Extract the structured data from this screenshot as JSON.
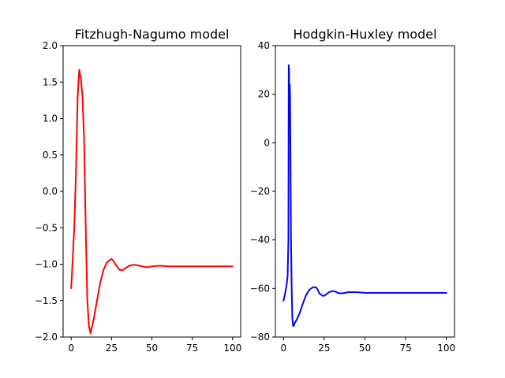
{
  "chart_data": [
    {
      "type": "line",
      "title": "Fitzhugh-Nagumo model",
      "xlabel": "",
      "ylabel": "",
      "xlim": [
        -5,
        105
      ],
      "ylim": [
        -2.0,
        2.0
      ],
      "xticks": [
        0,
        25,
        50,
        75,
        100
      ],
      "xtick_labels": [
        "0",
        "25",
        "50",
        "75",
        "100"
      ],
      "yticks": [
        -2.0,
        -1.5,
        -1.0,
        -0.5,
        0.0,
        0.5,
        1.0,
        1.5,
        2.0
      ],
      "ytick_labels": [
        "−2.0",
        "−1.5",
        "−1.0",
        "−0.5",
        "0.0",
        "0.5",
        "1.0",
        "1.5",
        "2.0"
      ],
      "grid": false,
      "series": [
        {
          "color": "#ff0000",
          "x": [
            0,
            1,
            2,
            3,
            4,
            5,
            6,
            7,
            8,
            9,
            10,
            11,
            12,
            14,
            16,
            18,
            20,
            22,
            24,
            25,
            26,
            28,
            30,
            32,
            34,
            36,
            38,
            40,
            42,
            44,
            46,
            48,
            50,
            55,
            60,
            70,
            80,
            90,
            100
          ],
          "y": [
            -1.33,
            -0.9,
            -0.45,
            0.3,
            1.3,
            1.67,
            1.55,
            1.3,
            0.7,
            -0.5,
            -1.5,
            -1.85,
            -1.95,
            -1.75,
            -1.5,
            -1.25,
            -1.08,
            -0.98,
            -0.94,
            -0.93,
            -0.95,
            -1.02,
            -1.08,
            -1.08,
            -1.05,
            -1.02,
            -1.01,
            -1.01,
            -1.02,
            -1.03,
            -1.04,
            -1.04,
            -1.03,
            -1.02,
            -1.03,
            -1.03,
            -1.03,
            -1.03,
            -1.03
          ]
        }
      ]
    },
    {
      "type": "line",
      "title": "Hodgkin-Huxley model",
      "xlabel": "",
      "ylabel": "",
      "xlim": [
        -5,
        105
      ],
      "ylim": [
        -80,
        40
      ],
      "xticks": [
        0,
        25,
        50,
        75,
        100
      ],
      "xtick_labels": [
        "0",
        "25",
        "50",
        "75",
        "100"
      ],
      "yticks": [
        -80,
        -60,
        -40,
        -20,
        0,
        20,
        40
      ],
      "ytick_labels": [
        "−80",
        "−60",
        "−40",
        "−20",
        "0",
        "20",
        "40"
      ],
      "grid": false,
      "series": [
        {
          "color": "#0000ff",
          "x": [
            0,
            1,
            2,
            2.5,
            3,
            3.2,
            3.4,
            3.6,
            3.8,
            4,
            4.3,
            4.6,
            5,
            5.4,
            5.8,
            6,
            6.5,
            7,
            8,
            10,
            12,
            14,
            16,
            18,
            20,
            21,
            22,
            24,
            25,
            26,
            28,
            30,
            32,
            34,
            36,
            40,
            45,
            50,
            60,
            70,
            80,
            100
          ],
          "y": [
            -65,
            -62,
            -58,
            -55,
            -40,
            32,
            30,
            10,
            24,
            20,
            -10,
            -40,
            -60,
            -72,
            -75,
            -75.5,
            -75,
            -74,
            -73,
            -70,
            -66,
            -62.5,
            -60.5,
            -59.5,
            -59.5,
            -60.5,
            -62,
            -63,
            -63,
            -62.5,
            -61.5,
            -61,
            -61.3,
            -62,
            -62,
            -61.5,
            -61.5,
            -61.8,
            -61.8,
            -61.8,
            -61.8,
            -61.8
          ]
        }
      ]
    }
  ]
}
